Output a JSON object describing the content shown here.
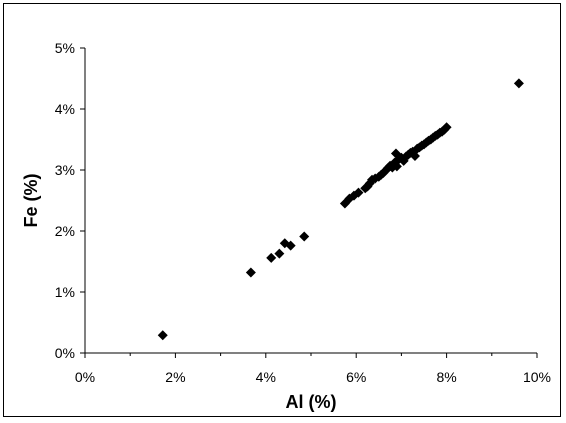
{
  "chart_data": {
    "type": "scatter",
    "title": "",
    "xlabel": "Al (%)",
    "ylabel": "Fe (%)",
    "xlim": [
      0,
      10
    ],
    "ylim": [
      0,
      5
    ],
    "x_ticks": [
      0,
      2,
      4,
      6,
      8,
      10
    ],
    "y_ticks": [
      0,
      1,
      2,
      3,
      4,
      5
    ],
    "x_tick_labels": [
      "0%",
      "2%",
      "4%",
      "6%",
      "8%",
      "10%"
    ],
    "y_tick_labels": [
      "0%",
      "1%",
      "2%",
      "3%",
      "4%",
      "5%"
    ],
    "grid": false,
    "legend": "none",
    "marker": "diamond",
    "marker_color": "#000000",
    "series": [
      {
        "points": [
          [
            1.72,
            0.29
          ],
          [
            3.67,
            1.32
          ],
          [
            4.12,
            1.56
          ],
          [
            4.3,
            1.63
          ],
          [
            4.42,
            1.8
          ],
          [
            4.55,
            1.76
          ],
          [
            4.85,
            1.91
          ],
          [
            5.75,
            2.45
          ],
          [
            5.85,
            2.53
          ],
          [
            5.95,
            2.58
          ],
          [
            6.05,
            2.63
          ],
          [
            6.2,
            2.7
          ],
          [
            6.25,
            2.73
          ],
          [
            6.3,
            2.78
          ],
          [
            6.35,
            2.84
          ],
          [
            6.42,
            2.86
          ],
          [
            6.5,
            2.89
          ],
          [
            6.55,
            2.92
          ],
          [
            6.6,
            2.95
          ],
          [
            6.65,
            2.99
          ],
          [
            6.7,
            3.03
          ],
          [
            6.75,
            3.07
          ],
          [
            6.8,
            3.04
          ],
          [
            6.85,
            3.12
          ],
          [
            6.88,
            3.27
          ],
          [
            6.9,
            3.06
          ],
          [
            6.95,
            3.18
          ],
          [
            7.0,
            3.2
          ],
          [
            7.05,
            3.15
          ],
          [
            7.1,
            3.22
          ],
          [
            7.15,
            3.25
          ],
          [
            7.2,
            3.28
          ],
          [
            7.25,
            3.3
          ],
          [
            7.3,
            3.23
          ],
          [
            7.35,
            3.35
          ],
          [
            7.4,
            3.37
          ],
          [
            7.45,
            3.4
          ],
          [
            7.5,
            3.42
          ],
          [
            7.55,
            3.45
          ],
          [
            7.6,
            3.48
          ],
          [
            7.65,
            3.5
          ],
          [
            7.7,
            3.53
          ],
          [
            7.75,
            3.56
          ],
          [
            7.8,
            3.58
          ],
          [
            7.85,
            3.61
          ],
          [
            7.9,
            3.63
          ],
          [
            7.95,
            3.66
          ],
          [
            8.0,
            3.7
          ],
          [
            9.6,
            4.42
          ]
        ]
      }
    ]
  }
}
